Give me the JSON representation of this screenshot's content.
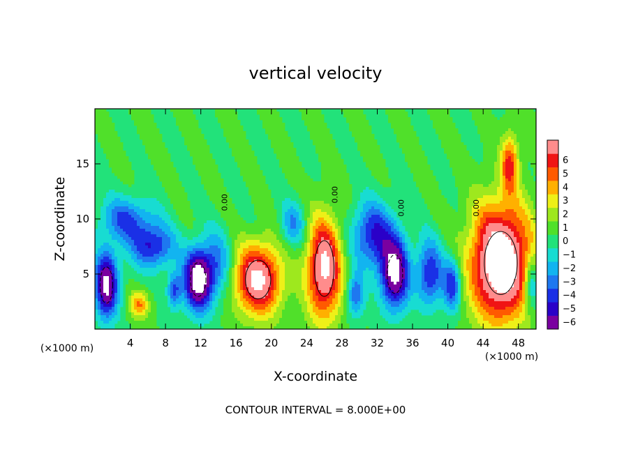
{
  "chart_data": {
    "type": "heatmap",
    "title": "vertical velocity",
    "xlabel": "X-coordinate",
    "ylabel": "Z-coordinate",
    "x_unit_label": "(×1000 m)",
    "x_ticks": [
      4,
      8,
      12,
      16,
      20,
      24,
      28,
      32,
      36,
      40,
      44,
      48
    ],
    "y_ticks": [
      5,
      10,
      15
    ],
    "xlim": [
      0,
      50
    ],
    "ylim": [
      0,
      20
    ],
    "footer": "CONTOUR INTERVAL = 8.000E+00",
    "contour_label": "0.00",
    "colorbar": {
      "levels": [
        -6,
        -5,
        -4,
        -3,
        -2,
        -1,
        0,
        1,
        2,
        3,
        4,
        5,
        6
      ],
      "tick_labels": [
        "−6",
        "−5",
        "−4",
        "−3",
        "−2",
        "−1",
        "0",
        "1",
        "2",
        "3",
        "4",
        "5",
        "6"
      ],
      "colors": [
        "#7a00a0",
        "#2a00c8",
        "#1a30e6",
        "#1e78f0",
        "#12b4f0",
        "#18dcd2",
        "#22e27a",
        "#50e02a",
        "#9ee81e",
        "#eef018",
        "#ffb000",
        "#ff5a00",
        "#f01414",
        "#ff8c8c"
      ]
    },
    "features": [
      {
        "kind": "updraft",
        "x": 18.5,
        "z": 4.5,
        "peak": 8,
        "rx": 2.6,
        "rz": 3.2
      },
      {
        "kind": "updraft",
        "x": 26.0,
        "z": 5.5,
        "peak": 8,
        "rx": 2.0,
        "rz": 4.6
      },
      {
        "kind": "updraft",
        "x": 46.0,
        "z": 6.0,
        "peak": 10,
        "rx": 3.4,
        "rz": 5.2
      },
      {
        "kind": "updraft",
        "x": 47.0,
        "z": 15.0,
        "peak": 5,
        "rx": 1.0,
        "rz": 2.6
      },
      {
        "kind": "updraft",
        "x": 5.0,
        "z": 2.2,
        "peak": 4,
        "rx": 1.1,
        "rz": 1.2
      },
      {
        "kind": "downdraft",
        "x": 1.3,
        "z": 4.0,
        "peak": -8,
        "rx": 1.3,
        "rz": 3.0
      },
      {
        "kind": "downdraft",
        "x": 11.7,
        "z": 4.5,
        "peak": -9,
        "rx": 1.6,
        "rz": 2.8
      },
      {
        "kind": "downdraft",
        "x": 34.0,
        "z": 5.0,
        "peak": -8,
        "rx": 1.6,
        "rz": 3.2
      },
      {
        "kind": "downdraft",
        "x": 6.5,
        "z": 7.5,
        "peak": -5,
        "rx": 2.5,
        "rz": 2.0
      },
      {
        "kind": "downdraft",
        "x": 3.5,
        "z": 10.0,
        "peak": -4,
        "rx": 3.0,
        "rz": 2.0
      },
      {
        "kind": "downdraft",
        "x": 31.5,
        "z": 8.5,
        "peak": -5,
        "rx": 2.5,
        "rz": 3.0
      },
      {
        "kind": "downdraft",
        "x": 38.0,
        "z": 5.0,
        "peak": -5,
        "rx": 1.5,
        "rz": 3.0
      },
      {
        "kind": "downdraft",
        "x": 22.5,
        "z": 9.5,
        "peak": -3,
        "rx": 1.5,
        "rz": 2.0
      },
      {
        "kind": "downdraft",
        "x": 40.5,
        "z": 4.0,
        "peak": -5,
        "rx": 1.0,
        "rz": 2.4
      },
      {
        "kind": "downdraft",
        "x": 14.0,
        "z": 6.0,
        "peak": -3,
        "rx": 1.5,
        "rz": 3.0
      },
      {
        "kind": "downdraft",
        "x": 9.0,
        "z": 3.5,
        "peak": -4,
        "rx": 0.8,
        "rz": 1.6
      },
      {
        "kind": "downdraft",
        "x": 29.5,
        "z": 3.0,
        "peak": -4,
        "rx": 1.0,
        "rz": 2.0
      },
      {
        "kind": "downdraft",
        "x": 49.5,
        "z": 4.0,
        "peak": -4,
        "rx": 0.8,
        "rz": 2.4
      }
    ]
  }
}
